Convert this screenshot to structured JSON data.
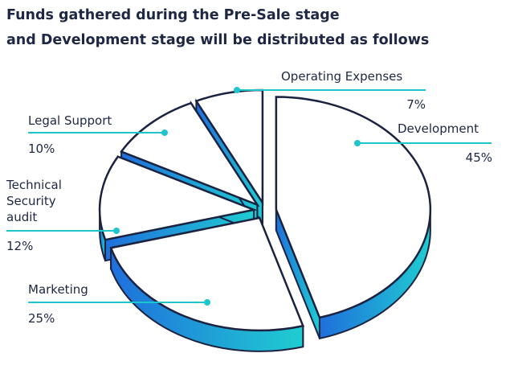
{
  "chart_data": {
    "type": "pie",
    "title": "Funds gathered during the Pre-Sale stage\nand Development stage will be distributed as follows",
    "categories": [
      "Development",
      "Marketing",
      "Technical\nSecurity\naudit",
      "Legal Support",
      "Operating Expenses"
    ],
    "values": [
      45,
      25,
      12,
      10,
      7
    ],
    "value_labels": [
      "45%",
      "25%",
      "12%",
      "10%",
      "7%"
    ],
    "gradient": [
      "#1f6fdc",
      "#1fcdd1"
    ],
    "leader_color": "#1cc6cc"
  }
}
